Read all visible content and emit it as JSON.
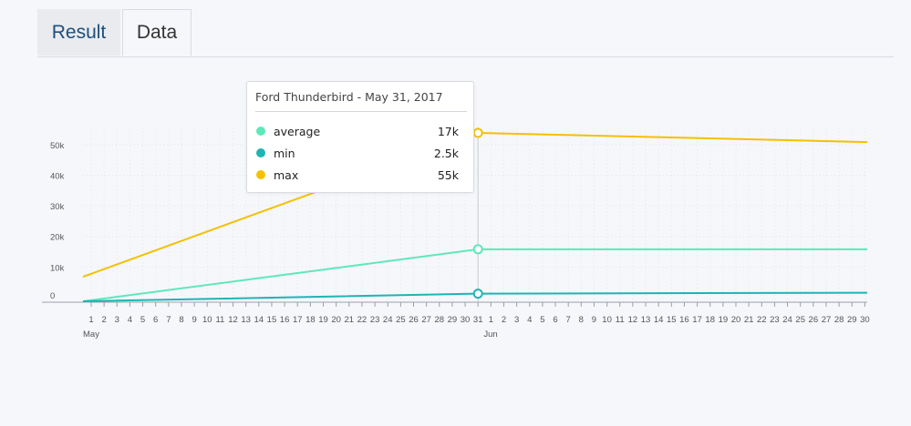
{
  "tabs": [
    {
      "label": "Result",
      "active": false
    },
    {
      "label": "Data",
      "active": true
    }
  ],
  "colors": {
    "average": "#5ee8b8",
    "min": "#1fb4b4",
    "max": "#f5c000"
  },
  "tooltip": {
    "title": "Ford Thunderbird - May 31, 2017",
    "rows": [
      {
        "name": "average",
        "value": "17k",
        "color": "#5ee8b8"
      },
      {
        "name": "min",
        "value": "2.5k",
        "color": "#1fb4b4"
      },
      {
        "name": "max",
        "value": "55k",
        "color": "#f5c000"
      }
    ]
  },
  "chart_data": {
    "type": "line",
    "title": "",
    "xlabel": "",
    "ylabel": "",
    "y_ticks": [
      "0",
      "10k",
      "20k",
      "30k",
      "40k",
      "50k"
    ],
    "ylim": [
      0,
      55000
    ],
    "x_ticks_may": [
      "1",
      "2",
      "3",
      "4",
      "5",
      "6",
      "7",
      "8",
      "9",
      "10",
      "11",
      "12",
      "13",
      "14",
      "15",
      "16",
      "17",
      "18",
      "19",
      "20",
      "21",
      "22",
      "23",
      "24",
      "25",
      "26",
      "27",
      "28",
      "29",
      "30",
      "31"
    ],
    "x_ticks_jun": [
      "1",
      "2",
      "3",
      "4",
      "5",
      "6",
      "7",
      "8",
      "9",
      "10",
      "11",
      "12",
      "13",
      "14",
      "15",
      "16",
      "17",
      "18",
      "19",
      "20",
      "21",
      "22",
      "23",
      "24",
      "25",
      "26",
      "27",
      "28",
      "29",
      "30"
    ],
    "months": [
      "May",
      "Jun"
    ],
    "highlight_date": "2017-05-31",
    "series": [
      {
        "name": "average",
        "color": "#5ee8b8",
        "points": [
          [
            "2017-05-01",
            0
          ],
          [
            "2017-05-31",
            17000
          ],
          [
            "2017-06-30",
            17000
          ]
        ]
      },
      {
        "name": "min",
        "color": "#1fb4b4",
        "points": [
          [
            "2017-05-01",
            0
          ],
          [
            "2017-05-31",
            2500
          ],
          [
            "2017-06-30",
            2800
          ]
        ]
      },
      {
        "name": "max",
        "color": "#f5c000",
        "points": [
          [
            "2017-05-01",
            8000
          ],
          [
            "2017-05-31",
            55000
          ],
          [
            "2017-06-30",
            52000
          ]
        ]
      }
    ],
    "grid": true,
    "legend": "none"
  }
}
